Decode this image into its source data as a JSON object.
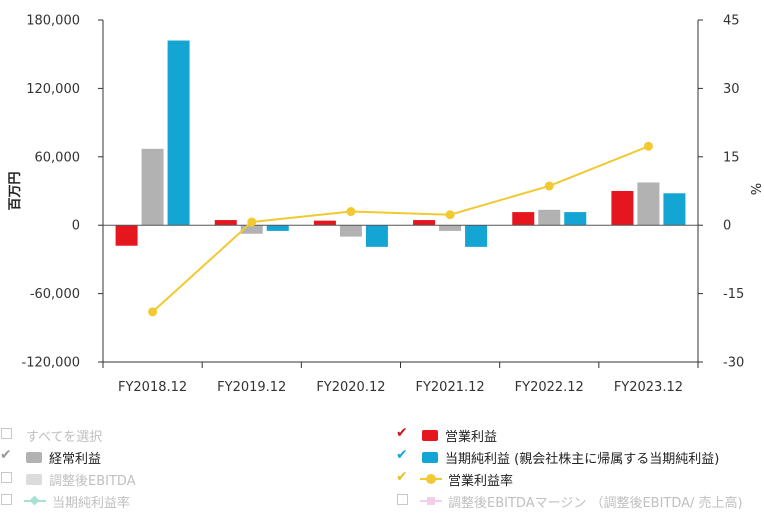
{
  "chart_data": {
    "type": "bar",
    "categories": [
      "FY2018.12",
      "FY2019.12",
      "FY2020.12",
      "FY2021.12",
      "FY2022.12",
      "FY2023.12"
    ],
    "series": [
      {
        "name": "営業利益",
        "type": "bar",
        "axis": "left",
        "color": "#e5161e",
        "values": [
          -18000,
          4500,
          4000,
          4500,
          11500,
          30000
        ]
      },
      {
        "name": "経常利益",
        "type": "bar",
        "axis": "left",
        "color": "#b2b2b2",
        "values": [
          67000,
          -7500,
          -10000,
          -5000,
          13500,
          37500
        ]
      },
      {
        "name": "当期純利益 (親会社株主に帰属する当期純利益)",
        "type": "bar",
        "axis": "left",
        "color": "#14a5d4",
        "values": [
          162000,
          -5000,
          -19000,
          -19000,
          11500,
          28000
        ]
      },
      {
        "name": "営業利益率",
        "type": "line",
        "axis": "right",
        "color": "#f2c930",
        "values": [
          -19,
          0.7,
          3.0,
          2.3,
          8.6,
          17.3
        ]
      }
    ],
    "ylabel": "百万円",
    "ylabel_right": "%",
    "ylim": [
      -120000,
      180000
    ],
    "ylim_right": [
      -30,
      45
    ],
    "yticks": [
      "180,000",
      "120,000",
      "60,000",
      "0",
      "-60,000",
      "-120,000"
    ],
    "yticks_right": [
      "45",
      "30",
      "15",
      "0",
      "-15",
      "-30"
    ],
    "grid": false,
    "legend_placement": "bottom"
  },
  "legend": {
    "items": [
      {
        "label": "すべてを選択",
        "checked": false,
        "marker": "none",
        "color": ""
      },
      {
        "label": "営業利益",
        "checked": true,
        "marker": "bar",
        "color": "#e5161e",
        "check_color": "#c8161e"
      },
      {
        "label": "経常利益",
        "checked": true,
        "marker": "bar",
        "color": "#b2b2b2",
        "check_color": "#9a9a9a"
      },
      {
        "label": "当期純利益 (親会社株主に帰属する当期純利益)",
        "checked": true,
        "marker": "bar",
        "color": "#14a5d4",
        "check_color": "#14a5d4"
      },
      {
        "label": "調整後EBITDA",
        "checked": false,
        "marker": "bar",
        "color": "#dcdcdc"
      },
      {
        "label": "営業利益率",
        "checked": true,
        "marker": "line-dot",
        "color": "#f2c930",
        "check_color": "#e6c21a"
      },
      {
        "label": "当期純利益率",
        "checked": false,
        "marker": "line-diamond",
        "color": "#a8e0d2"
      },
      {
        "label": "調整後EBITDAマージン （調整後EBITDA/ 売上高)",
        "checked": false,
        "marker": "line-square",
        "color": "#f4cde8"
      }
    ]
  }
}
